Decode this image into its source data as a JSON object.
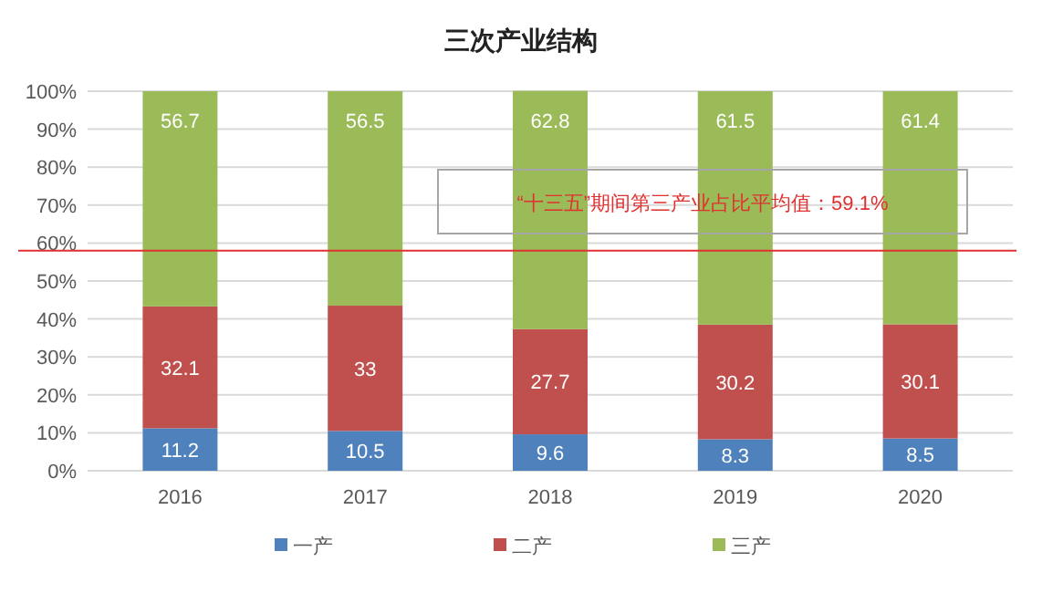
{
  "chart_data": {
    "type": "bar",
    "stacked": true,
    "title": "三次产业结构",
    "categories": [
      "2016",
      "2017",
      "2018",
      "2019",
      "2020"
    ],
    "series": [
      {
        "name": "一产",
        "color": "#4f81bd",
        "values": [
          11.2,
          10.5,
          9.6,
          8.3,
          8.5
        ]
      },
      {
        "name": "二产",
        "color": "#c0504d",
        "values": [
          32.1,
          33,
          27.7,
          30.2,
          30.1
        ]
      },
      {
        "name": "三产",
        "color": "#9bbb59",
        "values": [
          56.7,
          56.5,
          62.8,
          61.5,
          61.4
        ]
      }
    ],
    "ylim": [
      0,
      100
    ],
    "yticks": [
      {
        "value": 0,
        "label": "0%"
      },
      {
        "value": 10,
        "label": "10%"
      },
      {
        "value": 20,
        "label": "20%"
      },
      {
        "value": 30,
        "label": "30%"
      },
      {
        "value": 40,
        "label": "40%"
      },
      {
        "value": 50,
        "label": "50%"
      },
      {
        "value": 60,
        "label": "60%"
      },
      {
        "value": 70,
        "label": "70%"
      },
      {
        "value": 80,
        "label": "80%"
      },
      {
        "value": 90,
        "label": "90%"
      },
      {
        "value": 100,
        "label": "100%"
      }
    ],
    "grid": "y",
    "data_labels": true,
    "legend": "bottom",
    "ref_lines": [
      {
        "axis": "y",
        "value": 58,
        "color": "#e03030"
      }
    ],
    "annotations": [
      "“十三五”期间第三产业占比平均值：59.1%"
    ]
  }
}
